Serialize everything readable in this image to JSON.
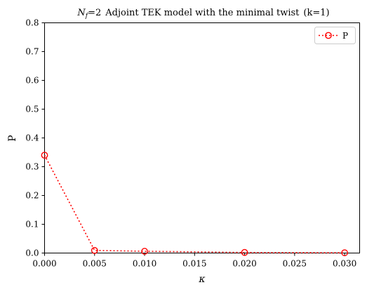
{
  "chart_data": {
    "type": "line",
    "title_prefix": "N",
    "title_prefix_sub": "f",
    "title_prefix_eq": "=2",
    "title_main": "Adjoint TEK model with the minimal twist",
    "title_suffix": "(k=1)",
    "xlabel": "κ",
    "ylabel": "P",
    "xlim": [
      0.0,
      0.0315
    ],
    "ylim": [
      0.0,
      0.8
    ],
    "xticks": [
      "0.000",
      "0.005",
      "0.010",
      "0.015",
      "0.020",
      "0.025",
      "0.030"
    ],
    "yticks": [
      "0.0",
      "0.1",
      "0.2",
      "0.3",
      "0.4",
      "0.5",
      "0.6",
      "0.7",
      "0.8"
    ],
    "grid": false,
    "legend_position": "top-right",
    "series": [
      {
        "name": "P",
        "color": "#ff0000",
        "linestyle": "dotted",
        "marker": "open-circle",
        "x": [
          0.0,
          0.005,
          0.01,
          0.02,
          0.03
        ],
        "y": [
          0.34,
          0.009,
          0.006,
          0.002,
          0.001
        ]
      }
    ]
  }
}
